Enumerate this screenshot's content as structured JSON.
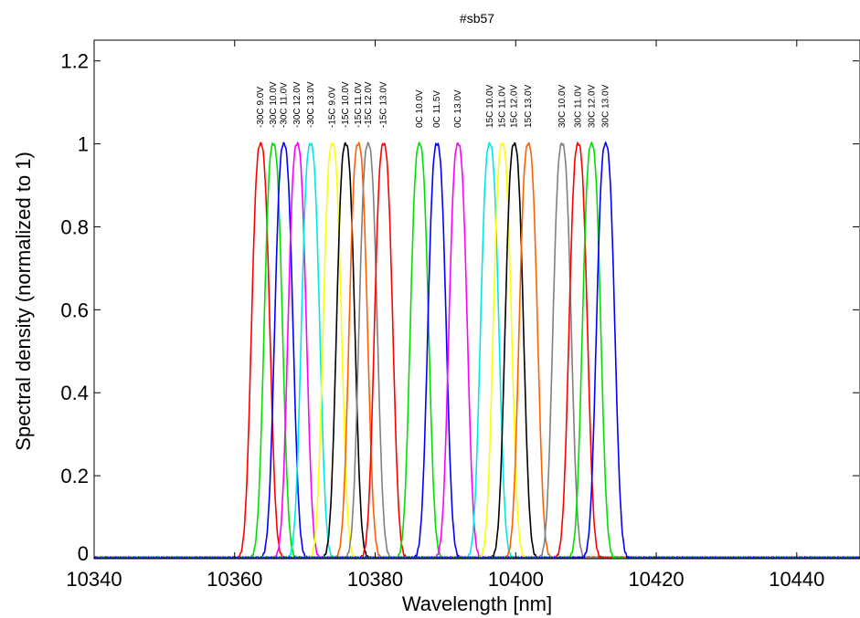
{
  "chart_data": {
    "type": "line",
    "title": "#sb57",
    "xlabel": "Wavelength [nm]",
    "ylabel": "Spectral density (normalized to 1)",
    "xlim": [
      10340,
      10449
    ],
    "ylim": [
      0,
      1.25
    ],
    "x_ticks": [
      10340,
      10360,
      10380,
      10400,
      10420,
      10440
    ],
    "x_tick_labels": [
      "10340",
      "10360",
      "10380",
      "10400",
      "10420",
      "10440"
    ],
    "y_ticks": [
      0,
      0.2,
      0.4,
      0.6,
      0.8,
      1,
      1.2
    ],
    "y_tick_labels": [
      "0",
      "0.2",
      "0.4",
      "0.6",
      "0.8",
      "1",
      "1.2"
    ],
    "grid": false,
    "legend": "none",
    "peak_width_fwhm_nm": 2.8,
    "series": [
      {
        "name": "-30C 9.0V",
        "peak": 10363.7,
        "color": "#ff0000"
      },
      {
        "name": "-30C 10.0V",
        "peak": 10365.5,
        "color": "#00e000"
      },
      {
        "name": "-30C 11.0V",
        "peak": 10367.0,
        "color": "#0000ff"
      },
      {
        "name": "-30C 12.0V",
        "peak": 10368.9,
        "color": "#ff00ff"
      },
      {
        "name": "-30C 13.0V",
        "peak": 10370.8,
        "color": "#00e8e8"
      },
      {
        "name": "-15C 9.0V",
        "peak": 10373.9,
        "color": "#ffff00"
      },
      {
        "name": "-15C 10.0V",
        "peak": 10375.8,
        "color": "#000000"
      },
      {
        "name": "-15C 11.0V",
        "peak": 10377.6,
        "color": "#ff6000"
      },
      {
        "name": "-15C 12.0V",
        "peak": 10379.0,
        "color": "#808080"
      },
      {
        "name": "-15C 13.0V",
        "peak": 10381.2,
        "color": "#ff0000"
      },
      {
        "name": "0C 10.0V",
        "peak": 10386.3,
        "color": "#00e000"
      },
      {
        "name": "0C 11.5V",
        "peak": 10388.8,
        "color": "#0000ff"
      },
      {
        "name": "0C 13.0V",
        "peak": 10391.8,
        "color": "#ff00ff"
      },
      {
        "name": "15C 10.0V",
        "peak": 10396.3,
        "color": "#00e8e8"
      },
      {
        "name": "15C 11.0V",
        "peak": 10398.1,
        "color": "#ffff00"
      },
      {
        "name": "15C 12.0V",
        "peak": 10399.8,
        "color": "#000000"
      },
      {
        "name": "15C 13.0V",
        "peak": 10401.8,
        "color": "#ff6000"
      },
      {
        "name": "30C 10.0V",
        "peak": 10406.6,
        "color": "#808080"
      },
      {
        "name": "30C 11.0V",
        "peak": 10408.9,
        "color": "#ff0000"
      },
      {
        "name": "30C 12.0V",
        "peak": 10410.8,
        "color": "#00e000"
      },
      {
        "name": "30C 13.0V",
        "peak": 10412.8,
        "color": "#0000ff"
      }
    ]
  }
}
